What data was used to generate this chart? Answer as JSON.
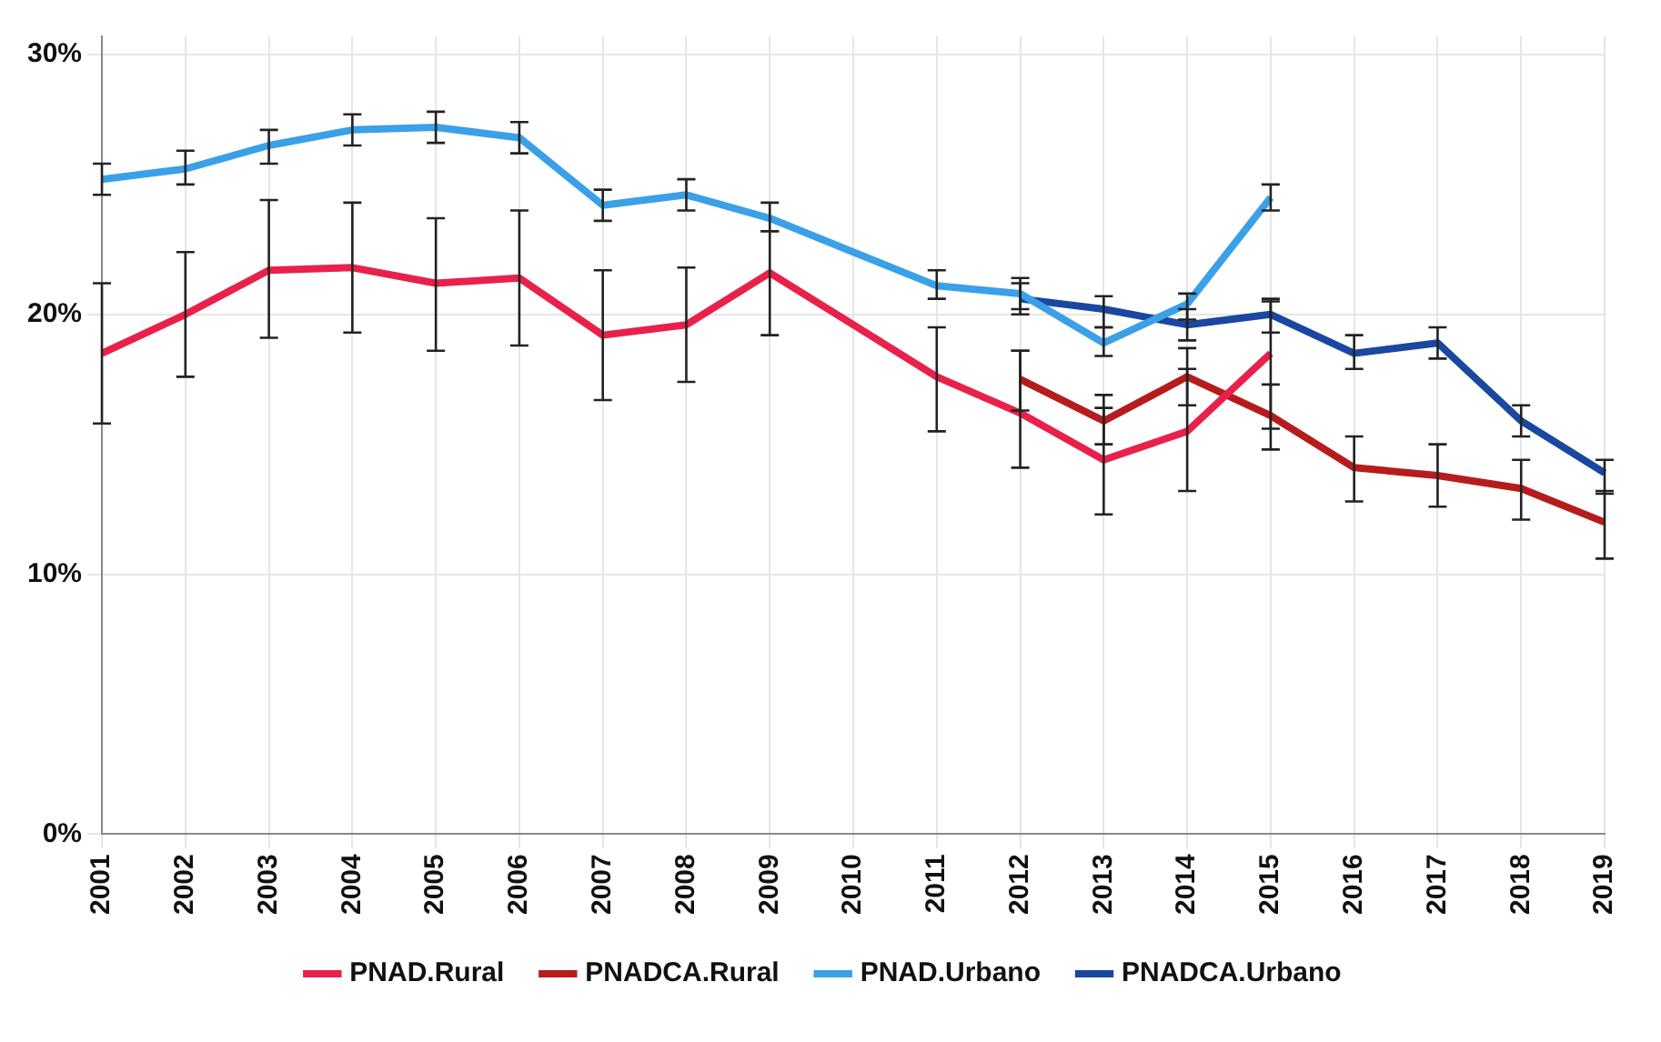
{
  "chart_data": {
    "type": "line",
    "categories": [
      "2001",
      "2002",
      "2003",
      "2004",
      "2005",
      "2006",
      "2007",
      "2008",
      "2009",
      "2010",
      "2011",
      "2012",
      "2013",
      "2014",
      "2015",
      "2016",
      "2017",
      "2018",
      "2019"
    ],
    "series": [
      {
        "name": "PNAD.Rural",
        "color": "#e8214b",
        "values": [
          18.5,
          20.0,
          21.7,
          21.8,
          21.2,
          21.4,
          19.2,
          19.6,
          21.6,
          19.6,
          17.6,
          16.2,
          14.4,
          15.5,
          18.5,
          null,
          null,
          null,
          null
        ],
        "errors": [
          [
            15.8,
            21.2
          ],
          [
            17.6,
            22.4
          ],
          [
            19.1,
            24.4
          ],
          [
            19.3,
            24.3
          ],
          [
            18.6,
            23.7
          ],
          [
            18.8,
            24.0
          ],
          [
            16.7,
            21.7
          ],
          [
            17.4,
            21.8
          ],
          [
            19.2,
            23.2
          ],
          null,
          [
            15.5,
            19.5
          ],
          [
            14.1,
            18.6
          ],
          [
            12.3,
            16.4
          ],
          [
            13.2,
            17.9
          ],
          [
            15.6,
            20.5
          ],
          null,
          null,
          null,
          null
        ]
      },
      {
        "name": "PNADCA.Rural",
        "color": "#b71c1c",
        "values": [
          null,
          null,
          null,
          null,
          null,
          null,
          null,
          null,
          null,
          null,
          null,
          17.5,
          15.9,
          17.6,
          16.1,
          14.1,
          13.8,
          13.3,
          12.0
        ],
        "errors": [
          null,
          null,
          null,
          null,
          null,
          null,
          null,
          null,
          null,
          null,
          null,
          [
            16.3,
            18.6
          ],
          [
            15.0,
            16.9
          ],
          [
            16.5,
            18.7
          ],
          [
            14.8,
            17.3
          ],
          [
            12.8,
            15.3
          ],
          [
            12.6,
            15.0
          ],
          [
            12.1,
            14.4
          ],
          [
            10.6,
            13.2
          ]
        ]
      },
      {
        "name": "PNAD.Urbano",
        "color": "#3aa0e8",
        "values": [
          25.2,
          25.6,
          26.5,
          27.1,
          27.2,
          26.8,
          24.2,
          24.6,
          23.7,
          22.4,
          21.1,
          20.8,
          18.9,
          20.4,
          24.5,
          null,
          null,
          null,
          null
        ],
        "errors": [
          [
            24.6,
            25.8
          ],
          [
            25.0,
            26.3
          ],
          [
            25.8,
            27.1
          ],
          [
            26.5,
            27.7
          ],
          [
            26.6,
            27.8
          ],
          [
            26.2,
            27.4
          ],
          [
            23.6,
            24.8
          ],
          [
            24.0,
            25.2
          ],
          [
            23.2,
            24.3
          ],
          null,
          [
            20.6,
            21.7
          ],
          [
            20.2,
            21.4
          ],
          [
            18.4,
            19.5
          ],
          [
            19.8,
            20.8
          ],
          [
            24.0,
            25.0
          ],
          null,
          null,
          null,
          null
        ]
      },
      {
        "name": "PNADCA.Urbano",
        "color": "#1a47a0",
        "values": [
          null,
          null,
          null,
          null,
          null,
          null,
          null,
          null,
          null,
          null,
          null,
          20.6,
          20.2,
          19.6,
          20.0,
          18.5,
          18.9,
          15.9,
          13.9
        ],
        "errors": [
          null,
          null,
          null,
          null,
          null,
          null,
          null,
          null,
          null,
          null,
          null,
          [
            20.0,
            21.2
          ],
          [
            19.5,
            20.7
          ],
          [
            19.0,
            20.2
          ],
          [
            19.3,
            20.6
          ],
          [
            17.9,
            19.2
          ],
          [
            18.3,
            19.5
          ],
          [
            15.3,
            16.5
          ],
          [
            13.1,
            14.4
          ]
        ]
      }
    ],
    "ylim": [
      0,
      30.7
    ],
    "yticks": [
      {
        "value": 0,
        "label": "0%"
      },
      {
        "value": 10,
        "label": "10%"
      },
      {
        "value": 20,
        "label": "20%"
      },
      {
        "value": 30,
        "label": "30%"
      }
    ],
    "grid": true,
    "legend": "bottom",
    "marker": "none",
    "line_style": "solid"
  }
}
